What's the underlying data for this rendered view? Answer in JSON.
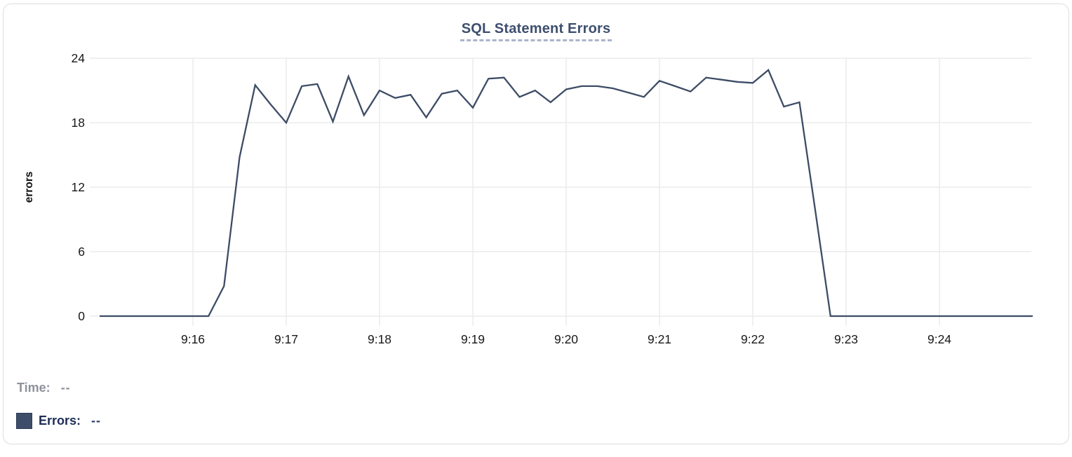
{
  "chart_data": {
    "type": "line",
    "title": "SQL Statement Errors",
    "xlabel": "",
    "ylabel": "errors",
    "x_base_time": "9:15:00",
    "xlim_seconds": [
      0,
      600
    ],
    "ylim": [
      0,
      24
    ],
    "grid": true,
    "line_color": "#3d4c66",
    "grid_color": "#ebebeb",
    "tick_color": "#17181a",
    "y_ticks": [
      0,
      6,
      12,
      18,
      24
    ],
    "x_ticks": [
      {
        "label": "9:16",
        "t": 60
      },
      {
        "label": "9:17",
        "t": 120
      },
      {
        "label": "9:18",
        "t": 180
      },
      {
        "label": "9:19",
        "t": 240
      },
      {
        "label": "9:20",
        "t": 300
      },
      {
        "label": "9:21",
        "t": 360
      },
      {
        "label": "9:22",
        "t": 420
      },
      {
        "label": "9:23",
        "t": 480
      },
      {
        "label": "9:24",
        "t": 540
      }
    ],
    "series": [
      {
        "name": "Errors",
        "points": [
          [
            0,
            0
          ],
          [
            10,
            0
          ],
          [
            20,
            0
          ],
          [
            30,
            0
          ],
          [
            40,
            0
          ],
          [
            50,
            0
          ],
          [
            60,
            0
          ],
          [
            70,
            0
          ],
          [
            80,
            2.8
          ],
          [
            90,
            14.8
          ],
          [
            100,
            21.5
          ],
          [
            110,
            19.7
          ],
          [
            120,
            18
          ],
          [
            130,
            21.4
          ],
          [
            140,
            21.6
          ],
          [
            150,
            18.1
          ],
          [
            160,
            22.3
          ],
          [
            170,
            18.7
          ],
          [
            180,
            21
          ],
          [
            190,
            20.3
          ],
          [
            200,
            20.6
          ],
          [
            210,
            18.5
          ],
          [
            220,
            20.7
          ],
          [
            230,
            21
          ],
          [
            240,
            19.4
          ],
          [
            250,
            22.1
          ],
          [
            260,
            22.2
          ],
          [
            270,
            20.4
          ],
          [
            280,
            21
          ],
          [
            290,
            19.9
          ],
          [
            300,
            21.1
          ],
          [
            310,
            21.4
          ],
          [
            320,
            21.4
          ],
          [
            330,
            21.2
          ],
          [
            340,
            20.8
          ],
          [
            350,
            20.4
          ],
          [
            360,
            21.9
          ],
          [
            370,
            21.4
          ],
          [
            380,
            20.9
          ],
          [
            390,
            22.2
          ],
          [
            400,
            22
          ],
          [
            410,
            21.8
          ],
          [
            420,
            21.7
          ],
          [
            430,
            22.9
          ],
          [
            440,
            19.5
          ],
          [
            450,
            19.9
          ],
          [
            460,
            10
          ],
          [
            470,
            0
          ],
          [
            480,
            0
          ],
          [
            490,
            0
          ],
          [
            500,
            0
          ],
          [
            510,
            0
          ],
          [
            520,
            0
          ],
          [
            530,
            0
          ],
          [
            540,
            0
          ],
          [
            550,
            0
          ],
          [
            560,
            0
          ],
          [
            570,
            0
          ],
          [
            580,
            0
          ],
          [
            590,
            0
          ],
          [
            600,
            0
          ]
        ]
      }
    ]
  },
  "legend": {
    "time_label": "Time:",
    "time_value": "--",
    "series_label": "Errors:",
    "series_value": "--",
    "swatch_color": "#3e4d69"
  }
}
